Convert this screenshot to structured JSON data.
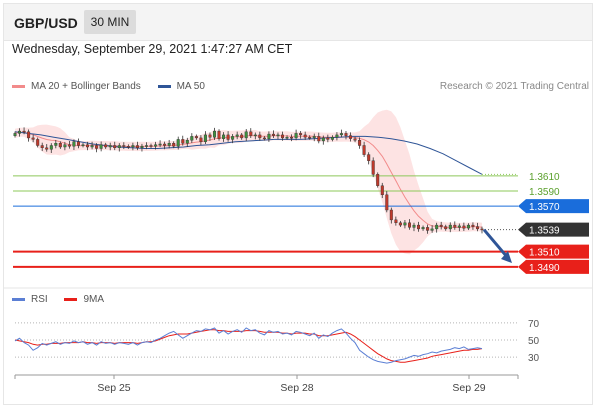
{
  "header": {
    "symbol": "GBP/USD",
    "timeframe": "30 MIN"
  },
  "datetime": "Wednesday, September 29, 2021 1:47:27 AM CET",
  "legend": [
    {
      "label": "MA 20 + Bollinger Bands",
      "color": "#f28b8b"
    },
    {
      "label": "MA 50",
      "color": "#2f5597"
    }
  ],
  "copyright": "Research © 2021 Trading Central",
  "rsi_legend": [
    {
      "label": "RSI",
      "color": "#5b7fd4"
    },
    {
      "label": "9MA",
      "color": "#e8201a"
    }
  ],
  "chart_data": {
    "type": "candlestick",
    "x_ticks": [
      "Sep 25",
      "Sep 28",
      "Sep 29"
    ],
    "ylim": [
      1.347,
      1.371
    ],
    "price_levels": [
      {
        "value": "1.3610",
        "num": 1.361,
        "kind": "resistance",
        "color": "#8dc85a"
      },
      {
        "value": "1.3590",
        "num": 1.359,
        "kind": "resistance",
        "color": "#8dc85a"
      },
      {
        "value": "1.3570",
        "num": 1.357,
        "kind": "pivot",
        "color": "#1a6ddb"
      },
      {
        "value": "1.3539",
        "num": 1.3539,
        "kind": "last",
        "color": "#333333"
      },
      {
        "value": "1.3510",
        "num": 1.351,
        "kind": "support",
        "color": "#e8201a"
      },
      {
        "value": "1.3490",
        "num": 1.349,
        "kind": "support",
        "color": "#e8201a"
      }
    ],
    "close_series": [
      1.3666,
      1.3669,
      1.3668,
      1.366,
      1.3658,
      1.365,
      1.3647,
      1.3645,
      1.365,
      1.3653,
      1.3648,
      1.3651,
      1.3649,
      1.3655,
      1.365,
      1.3651,
      1.3648,
      1.365,
      1.3646,
      1.3651,
      1.3648,
      1.365,
      1.3647,
      1.365,
      1.3649,
      1.3648,
      1.365,
      1.3647,
      1.3649,
      1.365,
      1.3649,
      1.3651,
      1.3652,
      1.365,
      1.3653,
      1.3649,
      1.3658,
      1.3653,
      1.3657,
      1.3662,
      1.366,
      1.3655,
      1.3664,
      1.3661,
      1.3669,
      1.3659,
      1.3664,
      1.3658,
      1.3662,
      1.3664,
      1.366,
      1.3668,
      1.3663,
      1.3664,
      1.366,
      1.3659,
      1.3665,
      1.3663,
      1.3664,
      1.366,
      1.3661,
      1.366,
      1.3666,
      1.3664,
      1.3661,
      1.366,
      1.3662,
      1.3656,
      1.366,
      1.3658,
      1.3661,
      1.3664,
      1.3666,
      1.3663,
      1.3659,
      1.3657,
      1.365,
      1.3638,
      1.363,
      1.3612,
      1.3597,
      1.3585,
      1.3565,
      1.3552,
      1.3548,
      1.3545,
      1.3548,
      1.3542,
      1.3545,
      1.354,
      1.3542,
      1.3538,
      1.354,
      1.3545,
      1.3543,
      1.354,
      1.3545,
      1.3542,
      1.3544,
      1.3541,
      1.3545,
      1.3543,
      1.354,
      1.3539
    ],
    "ma50_series": [
      1.3668,
      1.3666,
      1.3664,
      1.3661,
      1.3658,
      1.3655,
      1.3652,
      1.365,
      1.3648,
      1.3647,
      1.3646,
      1.3646,
      1.3647,
      1.3648,
      1.365,
      1.3651,
      1.3653,
      1.3655,
      1.3656,
      1.3657,
      1.3658,
      1.3658,
      1.3658,
      1.3659,
      1.366,
      1.3661,
      1.3662,
      1.3662,
      1.3661,
      1.3659,
      1.3656,
      1.3652,
      1.3646,
      1.3639,
      1.363,
      1.3621,
      1.3612
    ],
    "rsi": {
      "levels": [
        70,
        50,
        30
      ],
      "ylim": [
        15,
        78
      ],
      "rsi_series": [
        49,
        52,
        47,
        44,
        38,
        41,
        46,
        44,
        46,
        48,
        45,
        47,
        46,
        49,
        47,
        48,
        45,
        47,
        44,
        48,
        46,
        47,
        45,
        47,
        46,
        45,
        47,
        44,
        47,
        48,
        47,
        50,
        52,
        55,
        58,
        60,
        56,
        52,
        55,
        58,
        61,
        60,
        63,
        62,
        64,
        58,
        61,
        57,
        60,
        62,
        59,
        64,
        61,
        62,
        58,
        56,
        61,
        59,
        60,
        57,
        58,
        56,
        60,
        59,
        57,
        55,
        58,
        52,
        56,
        54,
        58,
        61,
        63,
        58,
        52,
        47,
        38,
        34,
        30,
        27,
        25,
        24,
        23,
        24,
        26,
        27,
        28,
        30,
        32,
        31,
        33,
        34,
        36,
        35,
        37,
        38,
        39,
        41,
        40,
        42,
        39,
        40,
        41,
        40
      ],
      "ma_series": [
        50,
        49,
        48,
        47,
        45,
        44,
        45,
        45,
        46,
        46,
        46,
        47,
        47,
        47,
        47,
        48,
        47,
        47,
        46,
        47,
        47,
        47,
        46,
        47,
        47,
        47,
        47,
        46,
        47,
        48,
        48,
        49,
        51,
        53,
        55,
        56,
        57,
        57,
        57,
        58,
        59,
        60,
        61,
        62,
        62,
        61,
        61,
        60,
        60,
        60,
        60,
        61,
        61,
        61,
        60,
        59,
        59,
        59,
        59,
        58,
        58,
        57,
        58,
        58,
        58,
        57,
        57,
        55,
        55,
        55,
        56,
        57,
        58,
        59,
        57,
        54,
        50,
        46,
        42,
        38,
        34,
        31,
        28,
        26,
        25,
        24,
        24,
        25,
        26,
        27,
        28,
        29,
        31,
        32,
        33,
        34,
        35,
        36,
        37,
        38,
        38,
        39,
        39,
        40
      ]
    }
  }
}
